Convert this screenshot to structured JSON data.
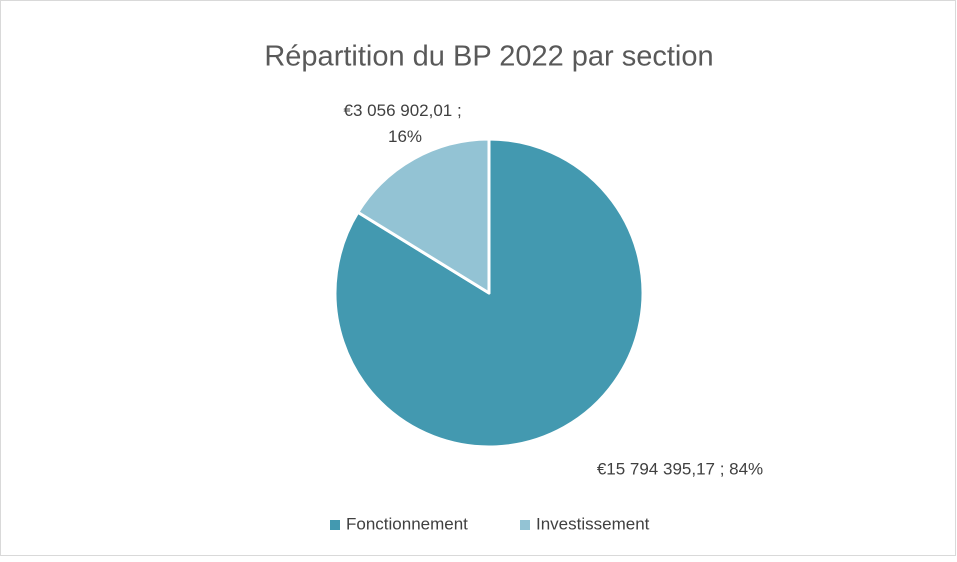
{
  "chart_data": {
    "type": "pie",
    "title": "Répartition du BP 2022 par section",
    "categories": [
      "Fonctionnement",
      "Investissement"
    ],
    "values": [
      15794395.17,
      3056902.01
    ],
    "value_labels": [
      "€15 794 395,17 ; 84%",
      "€3 056 902,01 ; 16%"
    ],
    "colors": [
      "#4399b0",
      "#93c3d4"
    ],
    "legend": "bottom"
  }
}
